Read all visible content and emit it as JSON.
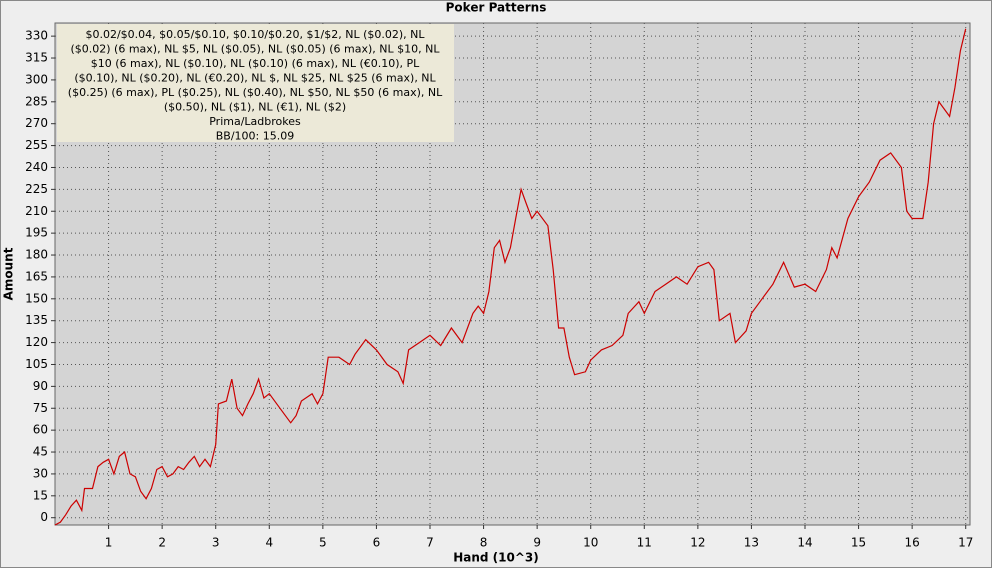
{
  "chart_data": {
    "type": "line",
    "title": "Poker Patterns",
    "x_label": "Hand (10^3)",
    "y_label": "Amount",
    "annotation": [
      "$0.02/$0.04, $0.05/$0.10, $0.10/$0.20, $1/$2, NL ($0.02), NL",
      "($0.02) (6 max), NL $5, NL ($0.05), NL ($0.05) (6 max), NL $10, NL",
      "$10 (6 max), NL ($0.10), NL ($0.10) (6 max), NL (€0.10), PL",
      "($0.10), NL ($0.20), NL (€0.20), NL $, NL $25, NL $25 (6 max), NL",
      "($0.25) (6 max), PL ($0.25), NL ($0.40), NL $50, NL $50 (6 max), NL",
      "($0.50), NL ($1), NL (€1), NL ($2)",
      "Prima/Ladbrokes",
      "BB/100: 15.09"
    ],
    "x": [
      0,
      0.1,
      0.2,
      0.3,
      0.4,
      0.5,
      0.55,
      0.7,
      0.8,
      0.9,
      1.0,
      1.1,
      1.2,
      1.3,
      1.4,
      1.5,
      1.6,
      1.7,
      1.8,
      1.9,
      2.0,
      2.1,
      2.2,
      2.3,
      2.4,
      2.5,
      2.6,
      2.7,
      2.8,
      2.9,
      3.0,
      3.05,
      3.2,
      3.3,
      3.4,
      3.5,
      3.6,
      3.7,
      3.8,
      3.9,
      4.0,
      4.2,
      4.4,
      4.5,
      4.6,
      4.8,
      4.9,
      5.0,
      5.1,
      5.3,
      5.5,
      5.6,
      5.8,
      6.0,
      6.2,
      6.4,
      6.5,
      6.6,
      6.8,
      7.0,
      7.2,
      7.4,
      7.6,
      7.8,
      7.9,
      8.0,
      8.1,
      8.2,
      8.3,
      8.4,
      8.5,
      8.6,
      8.7,
      8.8,
      8.9,
      9.0,
      9.2,
      9.3,
      9.4,
      9.5,
      9.6,
      9.7,
      9.9,
      10.0,
      10.2,
      10.4,
      10.6,
      10.7,
      10.9,
      11.0,
      11.2,
      11.4,
      11.6,
      11.8,
      12.0,
      12.2,
      12.3,
      12.4,
      12.6,
      12.7,
      12.9,
      13.0,
      13.2,
      13.4,
      13.6,
      13.8,
      14.0,
      14.2,
      14.4,
      14.5,
      14.6,
      14.8,
      15.0,
      15.2,
      15.4,
      15.6,
      15.8,
      15.9,
      16.0,
      16.2,
      16.3,
      16.4,
      16.5,
      16.6,
      16.7,
      16.8,
      16.9,
      17.0
    ],
    "series": [
      {
        "color": "#cc0000",
        "values": [
          -5,
          -3,
          2,
          8,
          12,
          5,
          20,
          20,
          35,
          38,
          40,
          30,
          42,
          45,
          30,
          28,
          18,
          13,
          20,
          33,
          35,
          28,
          30,
          35,
          33,
          38,
          42,
          35,
          40,
          35,
          50,
          78,
          80,
          95,
          75,
          70,
          78,
          85,
          95,
          82,
          85,
          75,
          65,
          70,
          80,
          85,
          78,
          85,
          110,
          110,
          105,
          112,
          122,
          115,
          105,
          100,
          92,
          115,
          120,
          125,
          118,
          130,
          120,
          140,
          145,
          140,
          155,
          185,
          190,
          175,
          185,
          205,
          225,
          215,
          205,
          210,
          200,
          170,
          130,
          130,
          110,
          98,
          100,
          108,
          115,
          118,
          125,
          140,
          148,
          140,
          155,
          160,
          165,
          160,
          172,
          175,
          170,
          135,
          140,
          120,
          128,
          140,
          150,
          160,
          175,
          158,
          160,
          155,
          170,
          185,
          178,
          205,
          220,
          230,
          245,
          250,
          240,
          210,
          205,
          205,
          230,
          270,
          285,
          280,
          275,
          295,
          320,
          335
        ]
      }
    ],
    "xlim": [
      0,
      17.08
    ],
    "ylim": [
      -5,
      339
    ],
    "xticks": [
      1,
      2,
      3,
      4,
      5,
      6,
      7,
      8,
      9,
      10,
      11,
      12,
      13,
      14,
      15,
      16,
      17
    ],
    "yticks": [
      0,
      15,
      30,
      45,
      60,
      75,
      90,
      105,
      120,
      135,
      150,
      165,
      180,
      195,
      210,
      225,
      240,
      255,
      270,
      285,
      300,
      315,
      330
    ],
    "grid": true
  }
}
